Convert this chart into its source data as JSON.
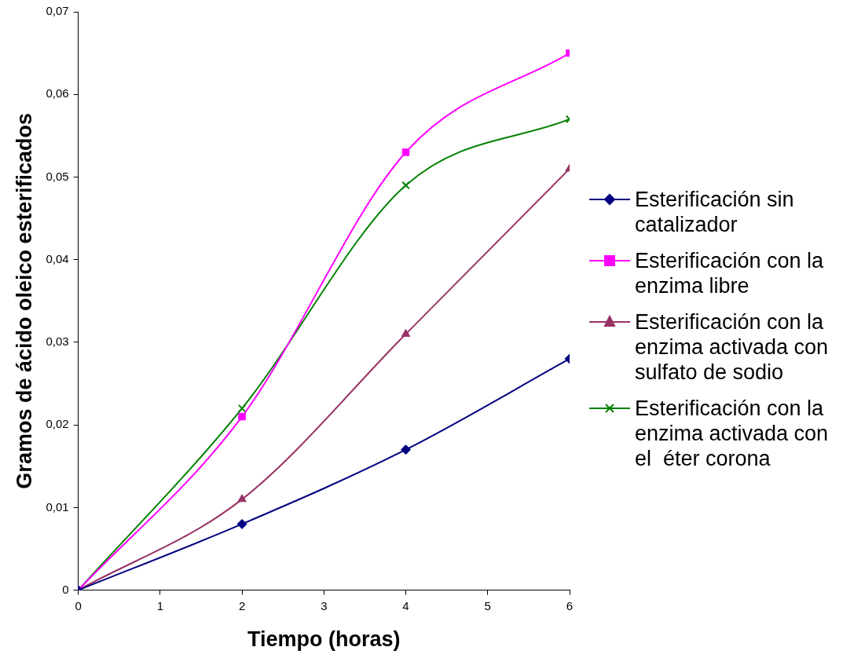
{
  "chart_data": {
    "type": "line",
    "xlabel": "Tiempo (horas)",
    "ylabel": "Gramos de ácido oleico esterificados",
    "x": [
      0,
      2,
      4,
      6
    ],
    "series": [
      {
        "name": "Esterificación sin catalizador",
        "color": "#000080",
        "marker": "diamond",
        "values": [
          0,
          0.008,
          0.017,
          0.028
        ]
      },
      {
        "name": "Esterificación con la enzima libre",
        "color": "#ff00ff",
        "marker": "square",
        "values": [
          0,
          0.021,
          0.053,
          0.065
        ]
      },
      {
        "name": "Esterificación con la enzima activada con sulfato de sodio",
        "color": "#993366",
        "marker": "triangle",
        "values": [
          0,
          0.011,
          0.031,
          0.051
        ]
      },
      {
        "name": "Esterificación con la enzima activada con el  éter corona",
        "color": "#008000",
        "marker": "cross",
        "values": [
          0,
          0.022,
          0.049,
          0.057
        ]
      }
    ],
    "xlim": [
      0,
      6
    ],
    "xticks": [
      0,
      1,
      2,
      3,
      4,
      5,
      6
    ],
    "ylim": [
      0,
      0.07
    ],
    "yticks": [
      0,
      {
        "value": 0.01,
        "label": "0,01"
      },
      {
        "value": 0.02,
        "label": "0,02"
      },
      {
        "value": 0.03,
        "label": "0,03"
      },
      {
        "value": 0.04,
        "label": "0,04"
      },
      {
        "value": 0.05,
        "label": "0,05"
      },
      {
        "value": 0.06,
        "label": "0,06"
      },
      {
        "value": 0.07,
        "label": "0,07"
      }
    ],
    "grid": false,
    "legend": "right"
  }
}
